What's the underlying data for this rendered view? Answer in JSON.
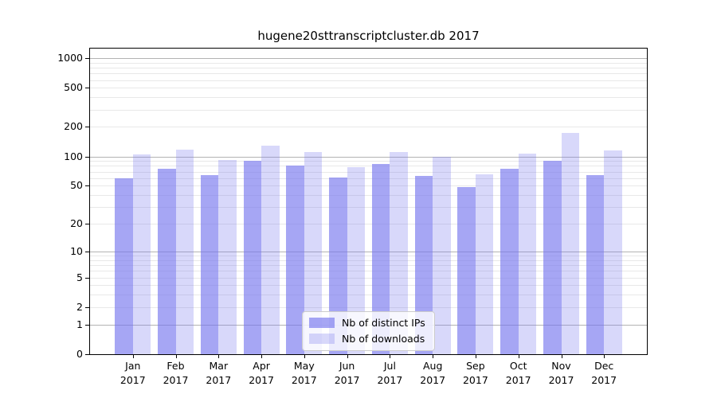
{
  "figure": {
    "background": "#ffffff"
  },
  "chart_data": {
    "type": "bar",
    "title": "hugene20sttranscriptcluster.db 2017",
    "y_scale": "log1p",
    "months": [
      "Jan",
      "Feb",
      "Mar",
      "Apr",
      "May",
      "Jun",
      "Jul",
      "Aug",
      "Sep",
      "Oct",
      "Nov",
      "Dec"
    ],
    "year": "2017",
    "categories": [
      "Jan 2017",
      "Feb 2017",
      "Mar 2017",
      "Apr 2017",
      "May 2017",
      "Jun 2017",
      "Jul 2017",
      "Aug 2017",
      "Sep 2017",
      "Oct 2017",
      "Nov 2017",
      "Dec 2017"
    ],
    "series": [
      {
        "name": "Nb of distinct IPs",
        "color": "rgba(119,119,238,0.65)",
        "values": [
          60,
          75,
          64,
          90,
          80,
          61,
          83,
          63,
          48,
          75,
          91,
          64
        ]
      },
      {
        "name": "Nb of downloads",
        "color": "rgba(119,119,238,0.29)",
        "values": [
          104,
          118,
          92,
          128,
          111,
          78,
          112,
          100,
          65,
          107,
          174,
          115
        ]
      }
    ],
    "y_ticks": [
      1000,
      500,
      200,
      100,
      50,
      20,
      10,
      5,
      2,
      1,
      0
    ],
    "ylim": [
      0,
      1250
    ],
    "grid": {
      "enabled": true,
      "major_at": [
        1,
        10,
        100,
        1000
      ],
      "major_color": "#b3b3b3",
      "minor_color": "#e8e8e8"
    },
    "axis": {
      "spine_color": "#000000",
      "tick_color": "#000000"
    },
    "legend": {
      "position": "lower-center",
      "items": [
        "Nb of distinct IPs",
        "Nb of downloads"
      ]
    }
  }
}
